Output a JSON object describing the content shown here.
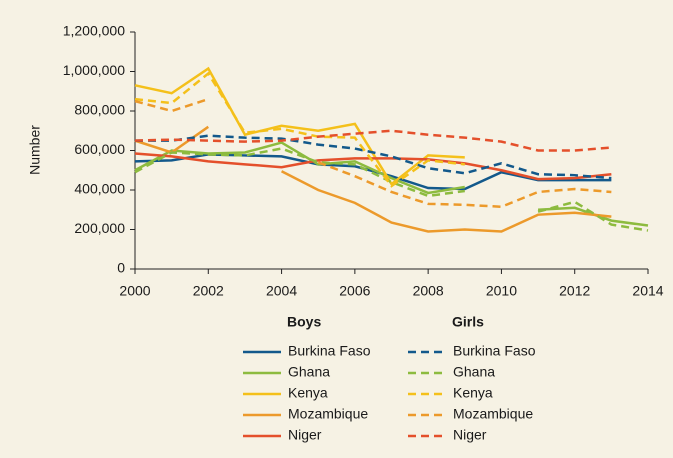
{
  "chart_data": {
    "type": "line",
    "y_label": "Number",
    "x": [
      2000,
      2001,
      2002,
      2003,
      2004,
      2005,
      2006,
      2007,
      2008,
      2009,
      2010,
      2011,
      2012,
      2013,
      2014
    ],
    "xlim": [
      2000,
      2014
    ],
    "xticks": [
      2000,
      2002,
      2004,
      2006,
      2008,
      2010,
      2012,
      2014
    ],
    "ylim": [
      0,
      1200000
    ],
    "yticks": [
      0,
      {
        "value": 200000,
        "label": "200,000"
      },
      {
        "value": 400000,
        "label": "400,000"
      },
      {
        "value": 600000,
        "label": "600,000"
      },
      {
        "value": 800000,
        "label": "800,000"
      },
      {
        "value": 1000000,
        "label": "1,000,000"
      },
      {
        "value": 1200000,
        "label": "1,200,000"
      }
    ],
    "legend_groups": [
      "Boys",
      "Girls"
    ],
    "series": [
      {
        "name": "Burkina Faso",
        "color": "#13598b",
        "dashed": false,
        "values": [
          545000,
          550000,
          580000,
          575000,
          570000,
          530000,
          520000,
          470000,
          410000,
          405000,
          490000,
          450000,
          450000,
          450000,
          null
        ]
      },
      {
        "name": "Ghana",
        "color": "#8dbb3f",
        "dashed": false,
        "values": [
          500000,
          600000,
          585000,
          590000,
          640000,
          530000,
          545000,
          460000,
          385000,
          415000,
          null,
          300000,
          310000,
          245000,
          220000
        ]
      },
      {
        "name": "Kenya",
        "color": "#f4c01a",
        "dashed": false,
        "values": [
          930000,
          890000,
          1015000,
          680000,
          725000,
          700000,
          735000,
          430000,
          575000,
          565000,
          null,
          null,
          null,
          null,
          null
        ]
      },
      {
        "name": "Mozambique",
        "color": "#ec9a2b",
        "dashed": false,
        "values": [
          650000,
          590000,
          720000,
          null,
          495000,
          400000,
          335000,
          235000,
          190000,
          200000,
          190000,
          275000,
          285000,
          265000,
          null
        ]
      },
      {
        "name": "Niger",
        "color": "#e4502b",
        "dashed": false,
        "values": [
          585000,
          570000,
          545000,
          530000,
          515000,
          550000,
          560000,
          560000,
          555000,
          535000,
          500000,
          455000,
          460000,
          480000,
          null
        ]
      },
      {
        "name": "Burkina Faso",
        "color": "#13598b",
        "dashed": true,
        "values": [
          650000,
          650000,
          675000,
          665000,
          660000,
          630000,
          610000,
          570000,
          510000,
          485000,
          535000,
          480000,
          475000,
          460000,
          null
        ]
      },
      {
        "name": "Ghana",
        "color": "#8dbb3f",
        "dashed": true,
        "values": [
          490000,
          590000,
          580000,
          575000,
          610000,
          540000,
          530000,
          440000,
          370000,
          395000,
          null,
          290000,
          340000,
          225000,
          195000
        ]
      },
      {
        "name": "Kenya",
        "color": "#f4c01a",
        "dashed": true,
        "values": [
          860000,
          840000,
          990000,
          690000,
          710000,
          670000,
          665000,
          420000,
          550000,
          530000,
          null,
          null,
          null,
          null,
          null
        ]
      },
      {
        "name": "Mozambique",
        "color": "#ec9a2b",
        "dashed": true,
        "values": [
          850000,
          800000,
          860000,
          null,
          null,
          540000,
          470000,
          390000,
          330000,
          325000,
          315000,
          390000,
          405000,
          390000,
          null
        ]
      },
      {
        "name": "Niger",
        "color": "#e4502b",
        "dashed": true,
        "values": [
          650000,
          655000,
          650000,
          645000,
          650000,
          670000,
          685000,
          700000,
          680000,
          665000,
          645000,
          600000,
          600000,
          615000,
          null
        ]
      }
    ]
  }
}
